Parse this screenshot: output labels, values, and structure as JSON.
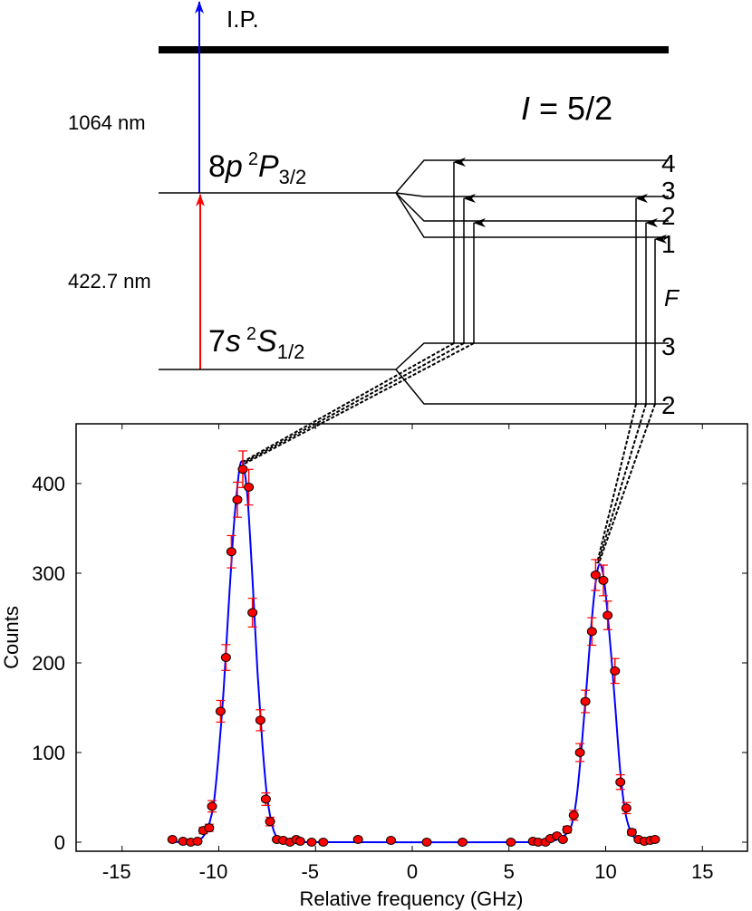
{
  "diagram": {
    "ip_label": "I.P.",
    "ionization_wavelength": "1064 nm",
    "excitation_wavelength": "422.7 nm",
    "nuclear_spin": "I = 5/2",
    "upper_state": {
      "n": "8",
      "l": "p",
      "mult": "2",
      "term": "P",
      "j": "3/2"
    },
    "lower_state": {
      "n": "7",
      "l": "s",
      "mult": "2",
      "term": "S",
      "j": "1/2"
    },
    "upper_F": [
      "4",
      "3",
      "2",
      "1"
    ],
    "lower_F": [
      "3",
      "2"
    ],
    "F_label": "F",
    "colors": {
      "ionization_arrow": "#0000ff",
      "excitation_arrow": "#ff0000"
    }
  },
  "chart_data": {
    "type": "scatter",
    "xlabel": "Relative frequency (GHz)",
    "ylabel": "Counts",
    "xlim": [
      -17,
      18
    ],
    "ylim": [
      -10,
      465
    ],
    "xticks": [
      -15,
      -10,
      -5,
      0,
      5,
      10,
      15
    ],
    "yticks": [
      0,
      100,
      200,
      300,
      400
    ],
    "grid": false,
    "colors": {
      "points": "#ff0000",
      "errorbars": "#ff0000",
      "fit": "#0000ff"
    },
    "data": {
      "x": [
        -12.4,
        -11.85,
        -11.45,
        -11.1,
        -10.8,
        -10.5,
        -10.35,
        -9.91,
        -9.63,
        -9.35,
        -9.04,
        -8.76,
        -8.45,
        -8.26,
        -7.85,
        -7.57,
        -7.35,
        -7.0,
        -6.67,
        -6.32,
        -6.0,
        -5.79,
        -5.2,
        -4.6,
        -2.8,
        -1.1,
        0.75,
        2.6,
        5.1,
        6.24,
        6.51,
        6.89,
        7.14,
        7.48,
        7.79,
        8.01,
        8.35,
        8.67,
        8.95,
        9.29,
        9.48,
        9.88,
        10.1,
        10.48,
        10.76,
        11.07,
        11.35,
        11.7,
        12.0,
        12.3,
        12.55
      ],
      "y": [
        3,
        1,
        0,
        1,
        13,
        16,
        40,
        146,
        206,
        324,
        382,
        416,
        396,
        256,
        136,
        48,
        23,
        3,
        2,
        0,
        3,
        1,
        0,
        0,
        3,
        2,
        0,
        0,
        0,
        1,
        0,
        0,
        4,
        7,
        3,
        14,
        30,
        100,
        157,
        235,
        298,
        292,
        253,
        191,
        67,
        38,
        11,
        3,
        1,
        2,
        3
      ]
    },
    "fit": {
      "x": [
        -12.5,
        -11.5,
        -11,
        -10.75,
        -10.5,
        -10.25,
        -10,
        -9.75,
        -9.5,
        -9.25,
        -9,
        -8.85,
        -8.7,
        -8.5,
        -8.25,
        -8,
        -7.75,
        -7.5,
        -7.25,
        -7,
        -6.5,
        -6,
        6,
        7,
        7.5,
        8,
        8.25,
        8.5,
        8.75,
        9,
        9.25,
        9.5,
        9.7,
        9.9,
        10.1,
        10.3,
        10.5,
        10.75,
        11,
        11.25,
        11.5,
        12,
        12.6
      ],
      "y": [
        0,
        1,
        3,
        8,
        20,
        45,
        100,
        170,
        260,
        345,
        405,
        424,
        418,
        380,
        290,
        190,
        110,
        50,
        20,
        6,
        1,
        0,
        0,
        1,
        3,
        10,
        20,
        50,
        105,
        170,
        240,
        293,
        310,
        295,
        255,
        205,
        150,
        80,
        35,
        14,
        5,
        1,
        0
      ]
    }
  }
}
